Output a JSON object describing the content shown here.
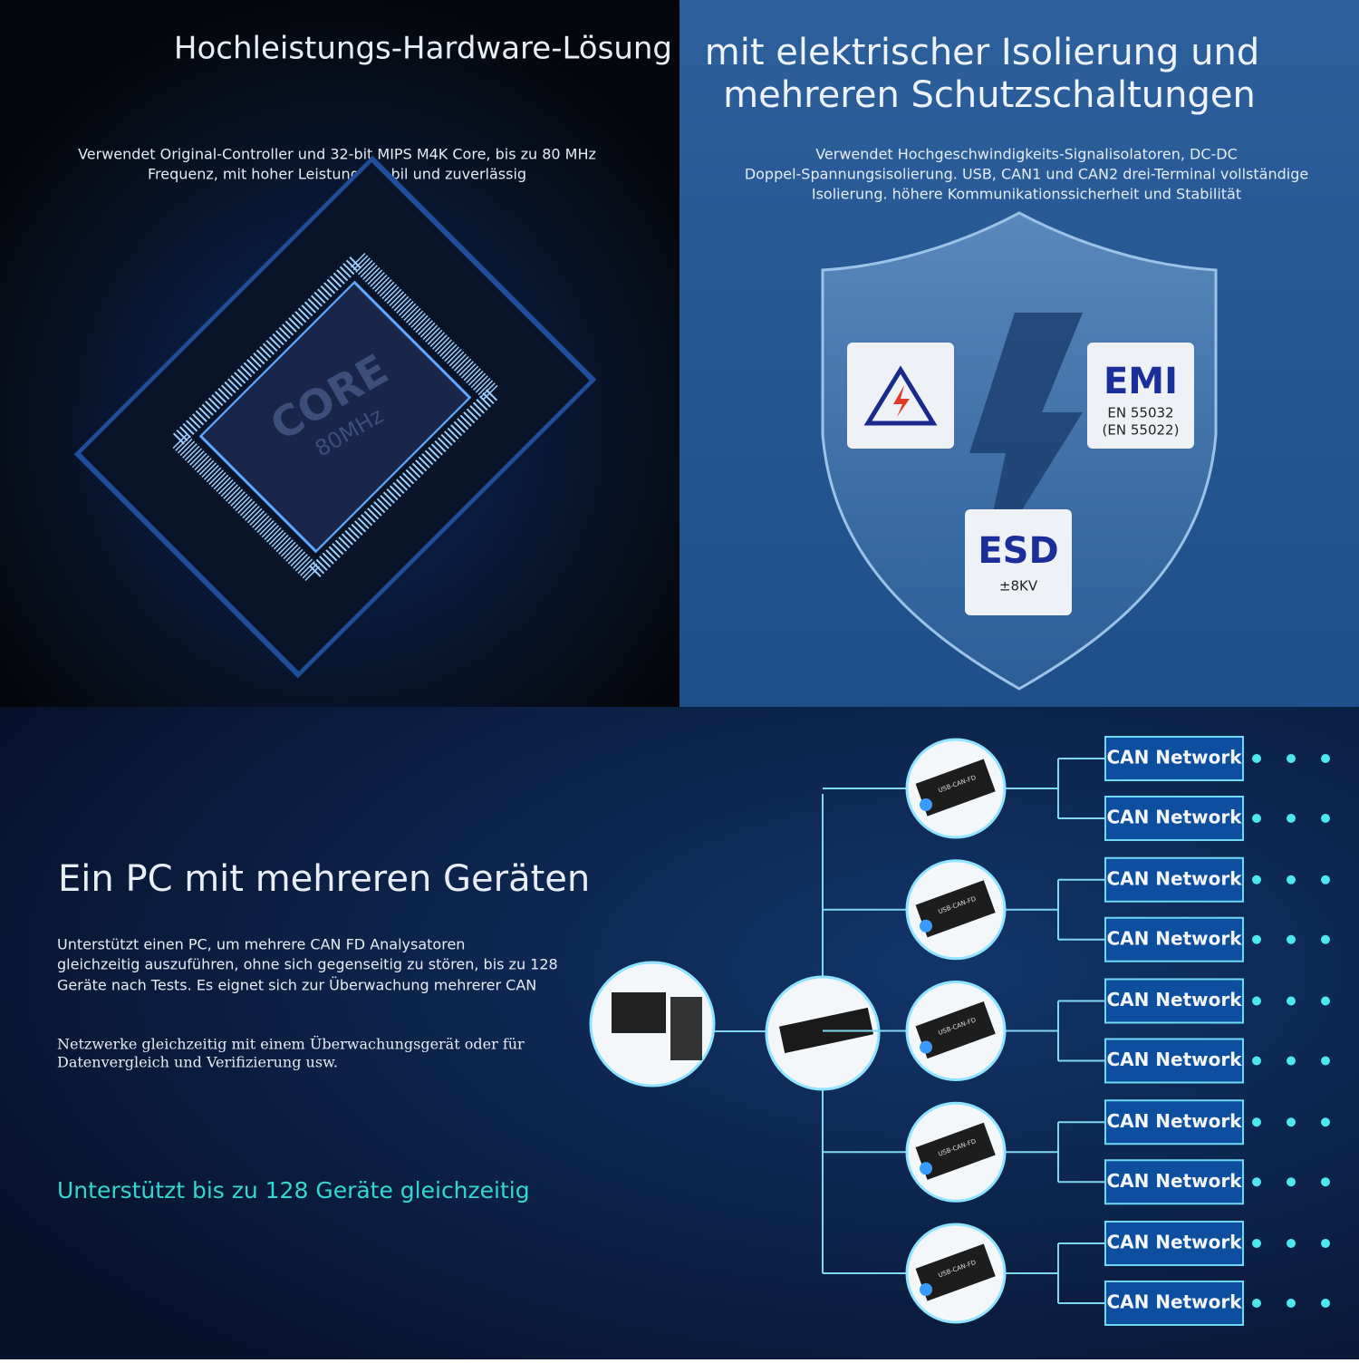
{
  "hardware": {
    "title": "Hochleistungs-Hardware-Lösung",
    "description": [
      "Verwendet Original-Controller und 32-bit MIPS M4K Core, bis zu 80 MHz",
      "Frequenz, mit hoher Leistung, stabil und zuverlässig"
    ],
    "chip": {
      "label": "CORE",
      "frequency": "80MHz"
    }
  },
  "isolation": {
    "title": [
      "mit elektrischer Isolierung und",
      "mehreren Schutzschaltungen"
    ],
    "description": [
      "Verwendet Hochgeschwindigkeits-Signalisolatoren, DC-DC",
      "Doppel-Spannungsisolierung. USB, CAN1 und CAN2 drei-Terminal vollständige",
      "Isolierung. höhere Kommunikationssicherheit und Stabilität"
    ],
    "badges": {
      "emi": {
        "title": "EMI",
        "lines": [
          "EN 55032",
          "(EN 55022)"
        ]
      },
      "esd": {
        "title": "ESD",
        "lines": [
          "±8KV"
        ]
      }
    }
  },
  "multi_device": {
    "title": "Ein PC mit mehreren Geräten",
    "paragraphs": [
      [
        "Unterstützt einen PC, um mehrere CAN FD Analysatoren",
        "gleichzeitig auszuführen, ohne sich gegenseitig zu stören, bis zu 128",
        "Geräte nach Tests. Es eignet sich zur Überwachung mehrerer CAN"
      ],
      [
        "Netzwerke gleichzeitig mit einem Überwachungsgerät oder für",
        "Datenvergleich und Verifizierung usw."
      ]
    ],
    "highlight": "Unterstützt bis zu 128 Geräte gleichzeitig",
    "devices": [
      {
        "label": "USB-CAN-FD",
        "networks": [
          "CAN Network",
          "CAN Network"
        ]
      },
      {
        "label": "USB-CAN-FD",
        "networks": [
          "CAN Network",
          "CAN Network"
        ]
      },
      {
        "label": "USB-CAN-FD",
        "networks": [
          "CAN Network",
          "CAN Network"
        ]
      },
      {
        "label": "USB-CAN-FD",
        "networks": [
          "CAN Network",
          "CAN Network"
        ]
      },
      {
        "label": "USB-CAN-FD",
        "networks": [
          "CAN Network",
          "CAN Network"
        ]
      }
    ]
  }
}
